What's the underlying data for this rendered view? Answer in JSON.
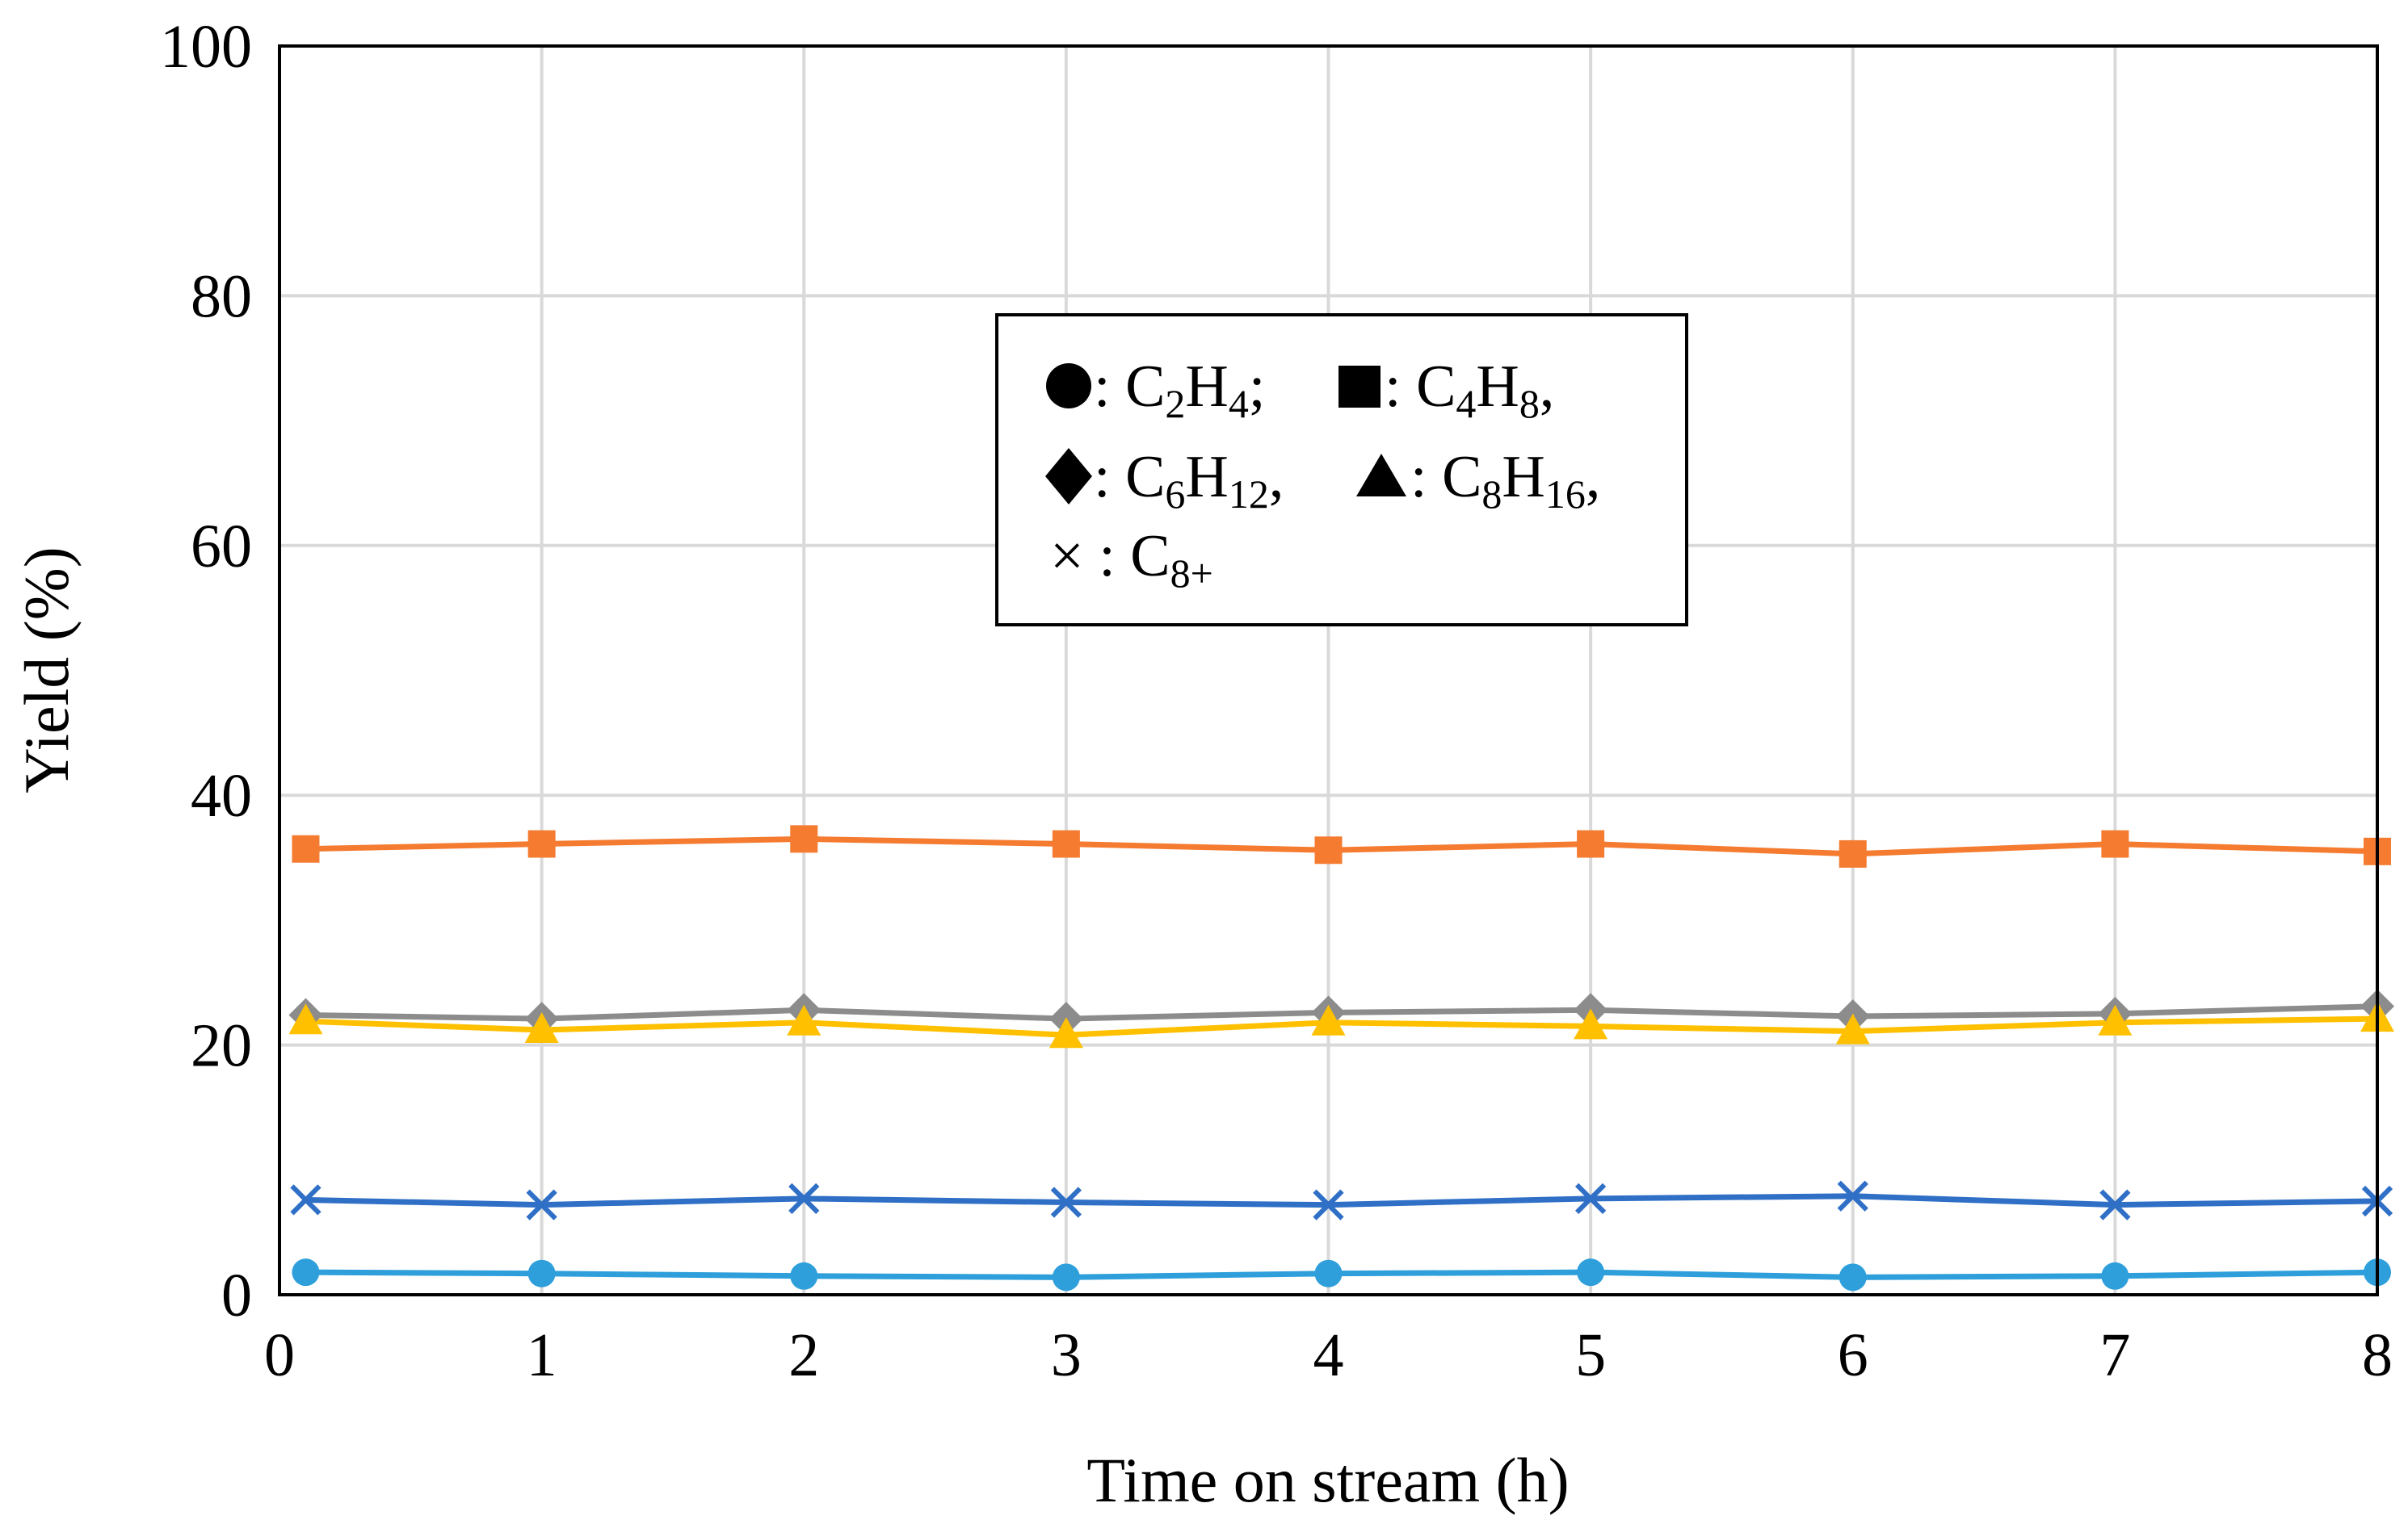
{
  "chart_data": {
    "type": "line",
    "title": "",
    "xlabel": "Time on stream (h)",
    "ylabel": "Yield (%)",
    "xlim": [
      0,
      8
    ],
    "ylim": [
      0,
      100
    ],
    "xticks": [
      "0",
      "1",
      "2",
      "3",
      "4",
      "5",
      "6",
      "7",
      "8"
    ],
    "yticks": [
      "0",
      "20",
      "40",
      "60",
      "80",
      "100"
    ],
    "grid": true,
    "legend_position": "top-center",
    "x": [
      0.1,
      1,
      2,
      3,
      4,
      5,
      6,
      7,
      8
    ],
    "series": [
      {
        "name": "C2H4",
        "marker": "circle",
        "color": "#2e9fdb",
        "values": [
          1.8,
          1.7,
          1.5,
          1.4,
          1.7,
          1.8,
          1.4,
          1.5,
          1.8
        ]
      },
      {
        "name": "C4H8",
        "marker": "square",
        "color": "#f47b30",
        "values": [
          35.7,
          36.1,
          36.5,
          36.1,
          35.6,
          36.1,
          35.3,
          36.1,
          35.5
        ]
      },
      {
        "name": "C6H12",
        "marker": "diamond",
        "color": "#8c8c8c",
        "values": [
          22.4,
          22.1,
          22.8,
          22.1,
          22.6,
          22.8,
          22.3,
          22.5,
          23.1
        ]
      },
      {
        "name": "C8H16",
        "marker": "triangle",
        "color": "#ffc000",
        "values": [
          21.9,
          21.2,
          21.8,
          20.8,
          21.8,
          21.5,
          21.1,
          21.8,
          22.1
        ]
      },
      {
        "name": "C8+",
        "marker": "x",
        "color": "#2f6fc6",
        "values": [
          7.6,
          7.2,
          7.7,
          7.4,
          7.2,
          7.7,
          7.9,
          7.2,
          7.5
        ]
      }
    ],
    "legend": {
      "line1": {
        "sep1": ": ",
        "c2h4_main": "C",
        "c2h4_sub1": "2",
        "c2h4_h": "H",
        "c2h4_sub2": "4",
        "c2h4_end": "; ",
        "sep2": ": ",
        "c4h8_main": "C",
        "c4h8_sub1": "4",
        "c4h8_h": "H",
        "c4h8_sub2": "8",
        "c4h8_end": ","
      },
      "line2": {
        "sep1": ": ",
        "c6h12_main": "C",
        "c6h12_sub1": "6",
        "c6h12_h": "H",
        "c6h12_sub2": "12",
        "c6h12_end": ", ",
        "sep2": ": ",
        "c8h16_main": "C",
        "c8h16_sub1": "8",
        "c8h16_h": "H",
        "c8h16_sub2": "16",
        "c8h16_end": ","
      },
      "line3": {
        "symbol": "×",
        "sep1": " : ",
        "c8p_main": "C",
        "c8p_sub": "8+"
      }
    }
  }
}
